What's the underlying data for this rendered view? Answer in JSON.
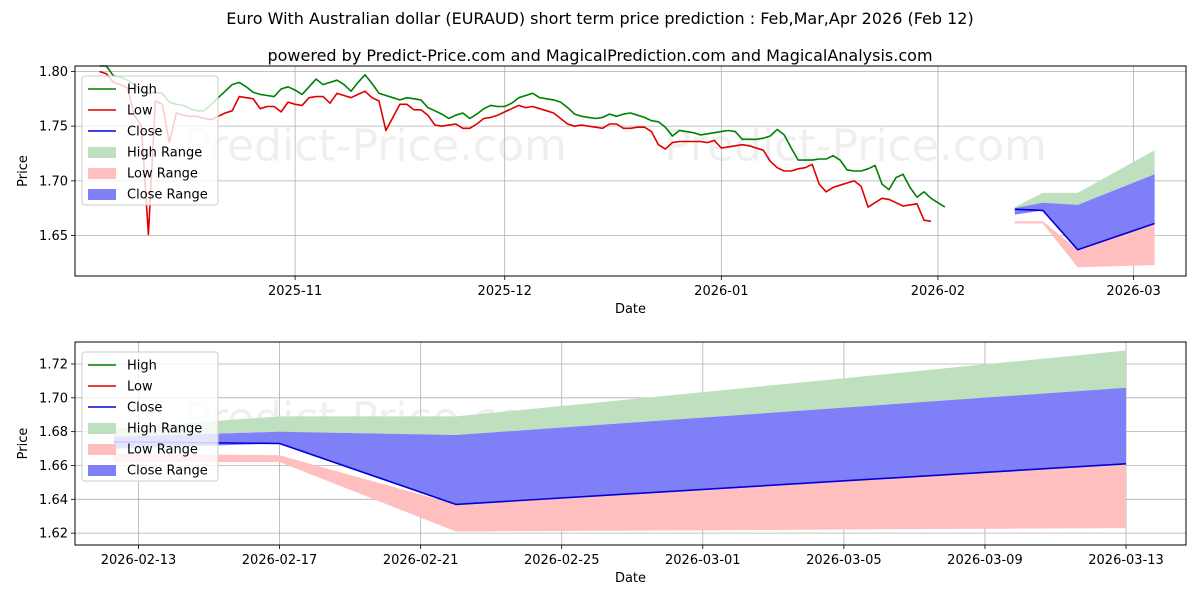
{
  "title": "Euro With Australian dollar (EURAUD) short term price prediction : Feb,Mar,Apr 2026 (Feb 12)",
  "subtitle": "powered by Predict-Price.com and MagicalPrediction.com and MagicalAnalysis.com",
  "watermark": "Predict-Price.com",
  "colors": {
    "high": "#008000",
    "low": "#e00000",
    "close": "#0000dd",
    "high_range": "#bfe0bf",
    "low_range": "#ffbfbf",
    "close_range": "#7f7ff8"
  },
  "chart_data": [
    {
      "type": "line",
      "xlabel": "Date",
      "ylabel": "Price",
      "xlim": [
        -23.5,
        135.5
      ],
      "ylim": [
        1.613,
        1.805
      ],
      "grid": true,
      "legend": "top-left",
      "legend_entries": [
        "High",
        "Low",
        "Close",
        "High Range",
        "Low Range",
        "Close Range"
      ],
      "x_ticks": [
        {
          "x": 8,
          "label": "2025-11"
        },
        {
          "x": 38,
          "label": "2025-12"
        },
        {
          "x": 69,
          "label": "2026-01"
        },
        {
          "x": 100,
          "label": "2026-02"
        },
        {
          "x": 128,
          "label": "2026-03"
        }
      ],
      "y_ticks": [
        "1.80",
        "1.75",
        "1.70",
        "1.65"
      ],
      "history_x": [
        -20,
        -19,
        -18,
        -17,
        -16,
        -15,
        -14,
        -13,
        -12,
        -11,
        -10,
        -9,
        -8,
        -7,
        -6,
        -5,
        -4,
        -3,
        -2,
        -1,
        0,
        1,
        2,
        3,
        4,
        5,
        6,
        7,
        8,
        9,
        10,
        11,
        12,
        13,
        14,
        15,
        16,
        17,
        18,
        19,
        20,
        21,
        22,
        23,
        24,
        25,
        26,
        27,
        28,
        29,
        30,
        31,
        32,
        33,
        34,
        35,
        36,
        37,
        38,
        39,
        40,
        41,
        42,
        43,
        44,
        45,
        46,
        47,
        48,
        49,
        50,
        51,
        52,
        53,
        54,
        55,
        56,
        57,
        58,
        59,
        60,
        61,
        62,
        63,
        64,
        65,
        66,
        67,
        68,
        69,
        70,
        71,
        72,
        73,
        74,
        75,
        76,
        77,
        78,
        79,
        80,
        81,
        82,
        83,
        84,
        85,
        86,
        87,
        88,
        89,
        90,
        91,
        92,
        93,
        94,
        95,
        96,
        97,
        98,
        99,
        100,
        101,
        102,
        103,
        104,
        105,
        106,
        107,
        108,
        109,
        110,
        111
      ],
      "history_high": [
        1.805,
        1.805,
        1.796,
        1.795,
        1.792,
        1.788,
        1.782,
        1.78,
        1.781,
        1.78,
        1.772,
        1.77,
        1.769,
        1.766,
        1.764,
        1.764,
        1.77,
        1.776,
        1.782,
        1.788,
        1.79,
        1.786,
        1.781,
        1.779,
        1.778,
        1.777,
        1.784,
        1.786,
        1.783,
        1.779,
        1.786,
        1.793,
        1.788,
        1.79,
        1.792,
        1.788,
        1.782,
        1.79,
        1.797,
        1.789,
        1.78,
        1.778,
        1.776,
        1.774,
        1.776,
        1.775,
        1.774,
        1.767,
        1.764,
        1.761,
        1.757,
        1.76,
        1.762,
        1.757,
        1.761,
        1.766,
        1.769,
        1.768,
        1.768,
        1.771,
        1.776,
        1.778,
        1.78,
        1.776,
        1.775,
        1.774,
        1.772,
        1.767,
        1.761,
        1.759,
        1.758,
        1.757,
        1.758,
        1.761,
        1.759,
        1.761,
        1.762,
        1.76,
        1.758,
        1.755,
        1.754,
        1.749,
        1.741,
        1.746,
        1.745,
        1.744,
        1.742,
        1.743,
        1.744,
        1.745,
        1.746,
        1.745,
        1.738,
        1.738,
        1.738,
        1.739,
        1.741,
        1.747,
        1.742,
        1.73,
        1.719,
        1.719,
        1.719,
        1.72,
        1.72,
        1.723,
        1.719,
        1.71,
        1.709,
        1.709,
        1.711,
        1.714,
        1.697,
        1.692,
        1.703,
        1.706,
        1.694,
        1.685,
        1.69,
        1.684,
        1.68,
        1.676
      ],
      "history_low": [
        1.8,
        1.798,
        1.79,
        1.788,
        1.785,
        1.76,
        1.75,
        1.651,
        1.773,
        1.77,
        1.735,
        1.762,
        1.76,
        1.759,
        1.759,
        1.757,
        1.756,
        1.759,
        1.762,
        1.764,
        1.777,
        1.776,
        1.775,
        1.766,
        1.768,
        1.768,
        1.763,
        1.772,
        1.77,
        1.769,
        1.776,
        1.777,
        1.777,
        1.771,
        1.78,
        1.778,
        1.776,
        1.779,
        1.782,
        1.776,
        1.773,
        1.746,
        1.758,
        1.77,
        1.77,
        1.765,
        1.765,
        1.76,
        1.751,
        1.75,
        1.751,
        1.752,
        1.748,
        1.748,
        1.752,
        1.757,
        1.758,
        1.76,
        1.763,
        1.766,
        1.769,
        1.767,
        1.768,
        1.766,
        1.764,
        1.762,
        1.757,
        1.752,
        1.75,
        1.751,
        1.75,
        1.749,
        1.748,
        1.752,
        1.752,
        1.748,
        1.748,
        1.749,
        1.749,
        1.745,
        1.733,
        1.729,
        1.735,
        1.736,
        1.736,
        1.736,
        1.736,
        1.735,
        1.737,
        1.73,
        1.731,
        1.732,
        1.733,
        1.732,
        1.73,
        1.728,
        1.718,
        1.712,
        1.709,
        1.709,
        1.711,
        1.712,
        1.715,
        1.697,
        1.69,
        1.694,
        1.696,
        1.698,
        1.7,
        1.695,
        1.676,
        1.68,
        1.684,
        1.683,
        1.68,
        1.677,
        1.678,
        1.679,
        1.664,
        1.663
      ],
      "forecast_x": [
        111,
        115,
        120,
        131
      ],
      "close": [
        1.674,
        1.673,
        1.637,
        1.661
      ],
      "high_range": {
        "upper": [
          1.676,
          1.689,
          1.689,
          1.728
        ],
        "lower": [
          1.674,
          1.68,
          1.678,
          1.706
        ]
      },
      "close_range": {
        "upper": [
          1.675,
          1.68,
          1.678,
          1.706
        ],
        "lower": [
          1.669,
          1.673,
          1.637,
          1.661
        ]
      },
      "low_range": {
        "upper": [
          1.663,
          1.663,
          1.637,
          1.661
        ],
        "lower": [
          1.661,
          1.661,
          1.621,
          1.623
        ]
      }
    },
    {
      "type": "line",
      "xlabel": "Date",
      "ylabel": "Price",
      "xlim": [
        -0.8,
        30.7
      ],
      "ylim": [
        1.613,
        1.733
      ],
      "grid": true,
      "legend": "top-left",
      "legend_entries": [
        "High",
        "Low",
        "Close",
        "High Range",
        "Low Range",
        "Close Range"
      ],
      "x_ticks": [
        {
          "x": 1,
          "label": "2026-02-13"
        },
        {
          "x": 5,
          "label": "2026-02-17"
        },
        {
          "x": 9,
          "label": "2026-02-21"
        },
        {
          "x": 13,
          "label": "2026-02-25"
        },
        {
          "x": 17,
          "label": "2026-03-01"
        },
        {
          "x": 21,
          "label": "2026-03-05"
        },
        {
          "x": 25,
          "label": "2026-03-09"
        },
        {
          "x": 29,
          "label": "2026-03-13"
        }
      ],
      "y_ticks": [
        "1.72",
        "1.70",
        "1.68",
        "1.66",
        "1.64",
        "1.62"
      ],
      "forecast_x": [
        0.3,
        5,
        10,
        29
      ],
      "close": [
        1.674,
        1.673,
        1.637,
        1.661
      ],
      "high_range": {
        "upper": [
          1.682,
          1.689,
          1.689,
          1.728
        ],
        "lower": [
          1.677,
          1.68,
          1.678,
          1.706
        ]
      },
      "close_range": {
        "upper": [
          1.677,
          1.68,
          1.678,
          1.706
        ],
        "lower": [
          1.67,
          1.673,
          1.637,
          1.661
        ]
      },
      "low_range": {
        "upper": [
          1.667,
          1.666,
          1.637,
          1.661
        ],
        "lower": [
          1.662,
          1.662,
          1.621,
          1.623
        ]
      }
    }
  ]
}
